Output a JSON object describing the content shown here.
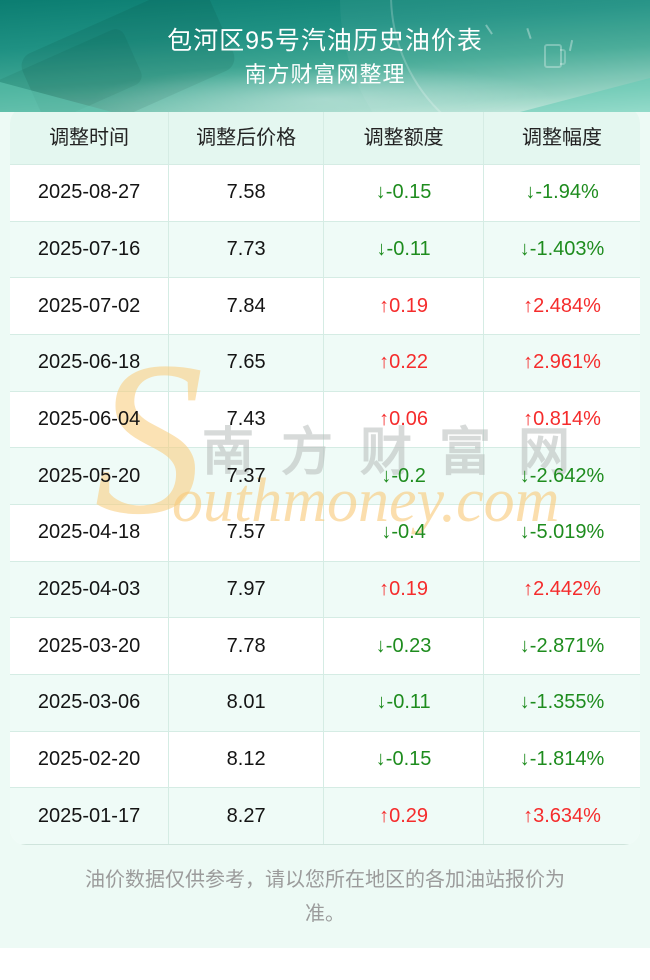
{
  "chart_data": {
    "type": "table",
    "title": "包河区95号汽油历史油价表",
    "subtitle": "南方财富网整理",
    "columns": [
      "调整时间",
      "调整后价格",
      "调整额度",
      "调整幅度"
    ],
    "rows": [
      {
        "date": "2025-08-27",
        "price": "7.58",
        "amount": "↓-0.15",
        "rate": "↓-1.94%",
        "dir": "down"
      },
      {
        "date": "2025-07-16",
        "price": "7.73",
        "amount": "↓-0.11",
        "rate": "↓-1.403%",
        "dir": "down"
      },
      {
        "date": "2025-07-02",
        "price": "7.84",
        "amount": "↑0.19",
        "rate": "↑2.484%",
        "dir": "up"
      },
      {
        "date": "2025-06-18",
        "price": "7.65",
        "amount": "↑0.22",
        "rate": "↑2.961%",
        "dir": "up"
      },
      {
        "date": "2025-06-04",
        "price": "7.43",
        "amount": "↑0.06",
        "rate": "↑0.814%",
        "dir": "up"
      },
      {
        "date": "2025-05-20",
        "price": "7.37",
        "amount": "↓-0.2",
        "rate": "↓-2.642%",
        "dir": "down"
      },
      {
        "date": "2025-04-18",
        "price": "7.57",
        "amount": "↓-0.4",
        "rate": "↓-5.019%",
        "dir": "down"
      },
      {
        "date": "2025-04-03",
        "price": "7.97",
        "amount": "↑0.19",
        "rate": "↑2.442%",
        "dir": "up"
      },
      {
        "date": "2025-03-20",
        "price": "7.78",
        "amount": "↓-0.23",
        "rate": "↓-2.871%",
        "dir": "down"
      },
      {
        "date": "2025-03-06",
        "price": "8.01",
        "amount": "↓-0.11",
        "rate": "↓-1.355%",
        "dir": "down"
      },
      {
        "date": "2025-02-20",
        "price": "8.12",
        "amount": "↓-0.15",
        "rate": "↓-1.814%",
        "dir": "down"
      },
      {
        "date": "2025-01-17",
        "price": "8.27",
        "amount": "↑0.29",
        "rate": "↑3.634%",
        "dir": "up"
      }
    ]
  },
  "watermark": {
    "initial": "S",
    "cn": "南方财富网",
    "en": "outhmoney.com"
  },
  "footer": {
    "note": "油价数据仅供参考，请以您所在地区的各加油站报价为准。"
  },
  "colors": {
    "up_red": "#f52c2c",
    "down_green": "#1e8c1e",
    "header_teal": "#0b7d71",
    "table_header_bg": "#e4f7f0",
    "zebra_bg": "#effbf7",
    "page_mint": "#edfaf5",
    "watermark_orange": "#f9ca7a"
  }
}
